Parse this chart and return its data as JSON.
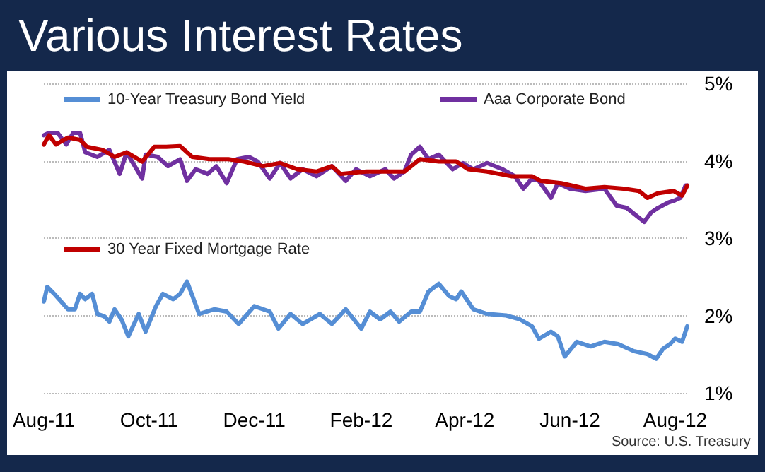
{
  "chart_data": {
    "type": "line",
    "title": "Various Interest Rates",
    "annotations": [
      "Source: U.S. Treasury"
    ],
    "xlim": [
      "2011-08-01",
      "2012-08-08"
    ],
    "xticks": [
      {
        "value": "2011-08-01",
        "label": "Aug-11"
      },
      {
        "value": "2011-10-01",
        "label": "Oct-11"
      },
      {
        "value": "2011-12-01",
        "label": "Dec-11"
      },
      {
        "value": "2012-02-01",
        "label": "Feb-12"
      },
      {
        "value": "2012-04-01",
        "label": "Apr-12"
      },
      {
        "value": "2012-06-01",
        "label": "Jun-12"
      },
      {
        "value": "2012-08-01",
        "label": "Aug-12"
      }
    ],
    "ylim": [
      1,
      5
    ],
    "yticks": [
      {
        "value": 1,
        "label": "1%"
      },
      {
        "value": 2,
        "label": "2%"
      },
      {
        "value": 3,
        "label": "3%"
      },
      {
        "value": 4,
        "label": "4%"
      },
      {
        "value": 5,
        "label": "5%"
      }
    ],
    "grid": "y",
    "legend": "top left",
    "marker": "none",
    "line_style": "solid",
    "series": [
      {
        "name": "10-Year Treasury Bond Yield",
        "color": "#558ed5",
        "x": [
          "2011-08-01",
          "2011-08-03",
          "2011-08-07",
          "2011-08-15",
          "2011-08-19",
          "2011-08-22",
          "2011-08-25",
          "2011-08-29",
          "2011-09-01",
          "2011-09-05",
          "2011-09-08",
          "2011-09-11",
          "2011-09-15",
          "2011-09-19",
          "2011-09-25",
          "2011-09-29",
          "2011-10-05",
          "2011-10-09",
          "2011-10-15",
          "2011-10-19",
          "2011-10-23",
          "2011-10-30",
          "2011-11-08",
          "2011-11-15",
          "2011-11-22",
          "2011-12-01",
          "2011-12-10",
          "2011-12-15",
          "2011-12-22",
          "2011-12-29",
          "2012-01-08",
          "2012-01-15",
          "2012-01-23",
          "2012-02-01",
          "2012-02-06",
          "2012-02-12",
          "2012-02-18",
          "2012-02-23",
          "2012-03-01",
          "2012-03-06",
          "2012-03-11",
          "2012-03-17",
          "2012-03-23",
          "2012-03-27",
          "2012-03-30",
          "2012-04-06",
          "2012-04-14",
          "2012-04-25",
          "2012-05-03",
          "2012-05-10",
          "2012-05-14",
          "2012-05-21",
          "2012-05-25",
          "2012-05-29",
          "2012-06-05",
          "2012-06-13",
          "2012-06-21",
          "2012-06-29",
          "2012-07-08",
          "2012-07-16",
          "2012-07-21",
          "2012-07-25",
          "2012-07-29",
          "2012-08-01",
          "2012-08-05",
          "2012-08-08"
        ],
        "values": [
          2.18,
          2.37,
          2.28,
          2.08,
          2.08,
          2.28,
          2.21,
          2.28,
          2.02,
          1.99,
          1.92,
          2.08,
          1.95,
          1.73,
          2.02,
          1.79,
          2.12,
          2.28,
          2.21,
          2.28,
          2.44,
          2.02,
          2.08,
          2.05,
          1.89,
          2.12,
          2.05,
          1.83,
          2.02,
          1.89,
          2.02,
          1.89,
          2.08,
          1.83,
          2.05,
          1.95,
          2.05,
          1.92,
          2.05,
          2.05,
          2.31,
          2.41,
          2.25,
          2.21,
          2.31,
          2.08,
          2.02,
          2.0,
          1.95,
          1.86,
          1.7,
          1.79,
          1.73,
          1.47,
          1.66,
          1.6,
          1.66,
          1.63,
          1.54,
          1.5,
          1.44,
          1.57,
          1.63,
          1.7,
          1.66,
          1.86
        ]
      },
      {
        "name": "Aaa Corporate Bond",
        "color": "#7030a0",
        "x": [
          "2011-08-01",
          "2011-08-04",
          "2011-08-09",
          "2011-08-14",
          "2011-08-18",
          "2011-08-22",
          "2011-08-25",
          "2011-09-01",
          "2011-09-08",
          "2011-09-14",
          "2011-09-18",
          "2011-09-27",
          "2011-09-29",
          "2011-10-06",
          "2011-10-12",
          "2011-10-19",
          "2011-10-23",
          "2011-10-28",
          "2011-11-04",
          "2011-11-09",
          "2011-11-15",
          "2011-11-21",
          "2011-11-28",
          "2011-12-03",
          "2011-12-10",
          "2011-12-16",
          "2011-12-22",
          "2011-12-29",
          "2012-01-06",
          "2012-01-15",
          "2012-01-23",
          "2012-01-29",
          "2012-02-06",
          "2012-02-15",
          "2012-02-20",
          "2012-02-26",
          "2012-03-01",
          "2012-03-06",
          "2012-03-11",
          "2012-03-17",
          "2012-03-25",
          "2012-03-31",
          "2012-04-06",
          "2012-04-14",
          "2012-04-23",
          "2012-04-30",
          "2012-05-05",
          "2012-05-10",
          "2012-05-14",
          "2012-05-21",
          "2012-05-25",
          "2012-06-01",
          "2012-06-10",
          "2012-06-21",
          "2012-06-28",
          "2012-07-04",
          "2012-07-09",
          "2012-07-14",
          "2012-07-18",
          "2012-07-22",
          "2012-07-28",
          "2012-08-01",
          "2012-08-04",
          "2012-08-07",
          "2012-08-08"
        ],
        "values": [
          4.33,
          4.36,
          4.36,
          4.21,
          4.36,
          4.36,
          4.11,
          4.05,
          4.14,
          3.83,
          4.11,
          3.77,
          4.08,
          4.05,
          3.93,
          4.02,
          3.74,
          3.89,
          3.83,
          3.93,
          3.71,
          4.02,
          4.05,
          3.99,
          3.77,
          3.97,
          3.77,
          3.89,
          3.8,
          3.93,
          3.74,
          3.89,
          3.8,
          3.89,
          3.77,
          3.86,
          4.08,
          4.18,
          4.02,
          4.08,
          3.89,
          3.97,
          3.89,
          3.97,
          3.89,
          3.8,
          3.64,
          3.77,
          3.74,
          3.52,
          3.71,
          3.64,
          3.61,
          3.64,
          3.42,
          3.39,
          3.3,
          3.21,
          3.33,
          3.39,
          3.46,
          3.49,
          3.52,
          3.68,
          3.68
        ]
      },
      {
        "name": "30 Year Fixed Mortgage Rate",
        "color": "#c00000",
        "x": [
          "2011-08-01",
          "2011-08-04",
          "2011-08-08",
          "2011-08-15",
          "2011-08-22",
          "2011-08-26",
          "2011-09-04",
          "2011-09-11",
          "2011-09-18",
          "2011-09-27",
          "2011-10-04",
          "2011-10-11",
          "2011-10-19",
          "2011-10-26",
          "2011-11-05",
          "2011-11-16",
          "2011-11-25",
          "2011-12-06",
          "2011-12-16",
          "2011-12-26",
          "2012-01-06",
          "2012-01-15",
          "2012-01-20",
          "2012-02-04",
          "2012-02-15",
          "2012-02-26",
          "2012-03-06",
          "2012-03-17",
          "2012-03-27",
          "2012-04-03",
          "2012-04-14",
          "2012-04-28",
          "2012-05-10",
          "2012-05-15",
          "2012-05-27",
          "2012-06-10",
          "2012-06-21",
          "2012-07-02",
          "2012-07-11",
          "2012-07-16",
          "2012-07-22",
          "2012-07-31",
          "2012-08-05",
          "2012-08-08"
        ],
        "values": [
          4.21,
          4.33,
          4.21,
          4.3,
          4.27,
          4.18,
          4.14,
          4.05,
          4.11,
          3.99,
          4.18,
          4.18,
          4.19,
          4.05,
          4.02,
          4.02,
          3.99,
          3.93,
          3.97,
          3.89,
          3.86,
          3.93,
          3.83,
          3.86,
          3.86,
          3.86,
          4.02,
          3.99,
          3.99,
          3.89,
          3.86,
          3.8,
          3.8,
          3.74,
          3.71,
          3.64,
          3.66,
          3.64,
          3.61,
          3.52,
          3.58,
          3.61,
          3.55,
          3.68
        ]
      }
    ]
  }
}
